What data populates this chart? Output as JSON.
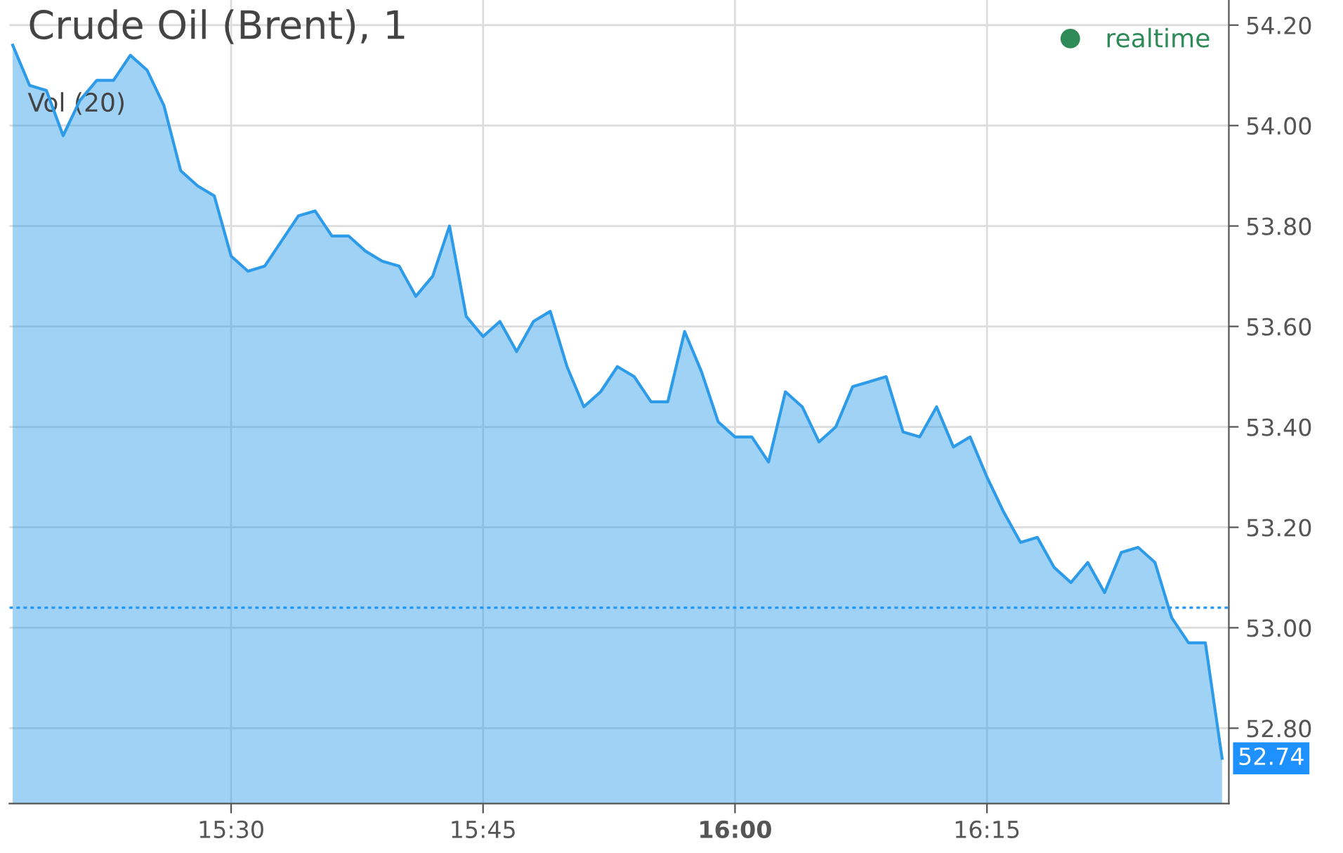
{
  "chart_data": {
    "type": "area",
    "title": "Crude Oil (Brent), 1",
    "annotations": [
      "Vol (20)",
      "realtime",
      {
        "text": "52.74",
        "x": 16.4833,
        "y": 52.74
      }
    ],
    "x": [
      15.2833,
      15.3,
      15.3167,
      15.3333,
      15.35,
      15.3667,
      15.3833,
      15.4,
      15.4167,
      15.4333,
      15.45,
      15.4667,
      15.4833,
      15.5,
      15.5167,
      15.5333,
      15.55,
      15.5667,
      15.5833,
      15.6,
      15.6167,
      15.6333,
      15.65,
      15.6667,
      15.6833,
      15.7,
      15.7167,
      15.7333,
      15.75,
      15.7667,
      15.7833,
      15.8,
      15.8167,
      15.8333,
      15.85,
      15.8667,
      15.8833,
      15.9,
      15.9167,
      15.9333,
      15.95,
      15.9667,
      15.9833,
      16.0,
      16.0167,
      16.0333,
      16.05,
      16.0667,
      16.0833,
      16.1,
      16.1167,
      16.1333,
      16.15,
      16.1667,
      16.1833,
      16.2,
      16.2167,
      16.2333,
      16.25,
      16.2667,
      16.2833,
      16.3,
      16.3167,
      16.3333,
      16.35,
      16.3667,
      16.3833,
      16.4,
      16.4167,
      16.4333,
      16.45,
      16.4667,
      16.4833
    ],
    "series": [
      {
        "color": "#2d9be8",
        "values": [
          54.16,
          54.08,
          54.07,
          53.98,
          54.05,
          54.09,
          54.09,
          54.14,
          54.11,
          54.04,
          53.91,
          53.88,
          53.86,
          53.74,
          53.71,
          53.72,
          53.77,
          53.82,
          53.83,
          53.78,
          53.78,
          53.75,
          53.73,
          53.72,
          53.66,
          53.7,
          53.8,
          53.62,
          53.58,
          53.61,
          53.55,
          53.61,
          53.63,
          53.52,
          53.44,
          53.47,
          53.52,
          53.5,
          53.45,
          53.45,
          53.59,
          53.51,
          53.41,
          53.38,
          53.38,
          53.33,
          53.47,
          53.44,
          53.37,
          53.4,
          53.48,
          53.49,
          53.5,
          53.39,
          53.38,
          53.44,
          53.36,
          53.38,
          53.3,
          53.23,
          53.17,
          53.18,
          53.12,
          53.09,
          53.13,
          53.07,
          53.15,
          53.16,
          53.13,
          53.02,
          52.97,
          52.97,
          52.74
        ]
      }
    ],
    "xlim": [
      15.28,
      16.49
    ],
    "xticks": [
      {
        "value": 15.5,
        "label": "15:30"
      },
      {
        "value": 15.75,
        "label": "15:45"
      },
      {
        "value": 16.0,
        "label": "16:00"
      },
      {
        "value": 16.25,
        "label": "16:15"
      }
    ],
    "ylim": [
      52.65,
      54.25
    ],
    "yticks": [
      {
        "value": 52.8,
        "label": "52.80"
      },
      {
        "value": 53.0,
        "label": "53.00"
      },
      {
        "value": 53.2,
        "label": "53.20"
      },
      {
        "value": 53.4,
        "label": "53.40"
      },
      {
        "value": 53.6,
        "label": "53.60"
      },
      {
        "value": 53.8,
        "label": "53.80"
      },
      {
        "value": 54.0,
        "label": "54.00"
      },
      {
        "value": 54.2,
        "label": "54.20"
      }
    ],
    "ref_lines": [
      {
        "axis": "y",
        "value": 53.04,
        "color": "#2196f3",
        "line_style": "dotted"
      }
    ],
    "grid": true
  }
}
